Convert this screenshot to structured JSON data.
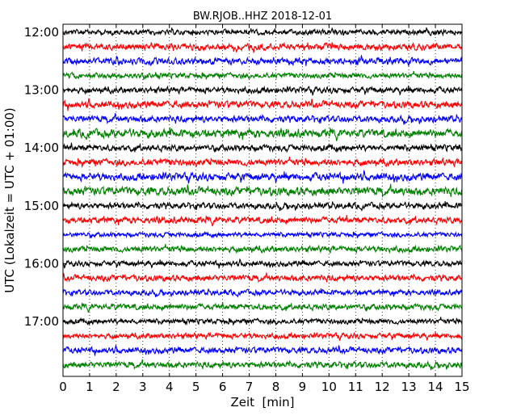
{
  "chart_data": {
    "type": "line",
    "title": "BW.RJOB..HHZ 2018-12-01",
    "xlabel": "Zeit  [min]",
    "ylabel": "UTC (Lokalzeit = UTC + 01:00)",
    "xlim": [
      0,
      15
    ],
    "x_ticks": [
      "0",
      "1",
      "2",
      "3",
      "4",
      "5",
      "6",
      "7",
      "8",
      "9",
      "10",
      "11",
      "12",
      "13",
      "14",
      "15"
    ],
    "y_tick_labels": [
      "12:00",
      "13:00",
      "14:00",
      "15:00",
      "16:00",
      "17:00"
    ],
    "grid": "vertical dotted lines at each minute",
    "trace_colors": [
      "#000000",
      "#ff0000",
      "#0000ff",
      "#007f00"
    ],
    "traces": [
      {
        "start": "12:00",
        "amplitude": 0.25
      },
      {
        "start": "12:15",
        "amplitude": 0.3
      },
      {
        "start": "12:30",
        "amplitude": 0.3
      },
      {
        "start": "12:45",
        "amplitude": 0.25
      },
      {
        "start": "13:00",
        "amplitude": 0.28
      },
      {
        "start": "13:15",
        "amplitude": 0.32
      },
      {
        "start": "13:30",
        "amplitude": 0.3
      },
      {
        "start": "13:45",
        "amplitude": 0.38
      },
      {
        "start": "14:00",
        "amplitude": 0.3
      },
      {
        "start": "14:15",
        "amplitude": 0.32
      },
      {
        "start": "14:30",
        "amplitude": 0.35
      },
      {
        "start": "14:45",
        "amplitude": 0.38
      },
      {
        "start": "15:00",
        "amplitude": 0.28
      },
      {
        "start": "15:15",
        "amplitude": 0.3
      },
      {
        "start": "15:30",
        "amplitude": 0.22
      },
      {
        "start": "15:45",
        "amplitude": 0.28
      },
      {
        "start": "16:00",
        "amplitude": 0.25
      },
      {
        "start": "16:15",
        "amplitude": 0.28
      },
      {
        "start": "16:30",
        "amplitude": 0.25
      },
      {
        "start": "16:45",
        "amplitude": 0.28
      },
      {
        "start": "17:00",
        "amplitude": 0.25
      },
      {
        "start": "17:15",
        "amplitude": 0.25
      },
      {
        "start": "17:30",
        "amplitude": 0.28
      },
      {
        "start": "17:45",
        "amplitude": 0.28
      }
    ]
  }
}
